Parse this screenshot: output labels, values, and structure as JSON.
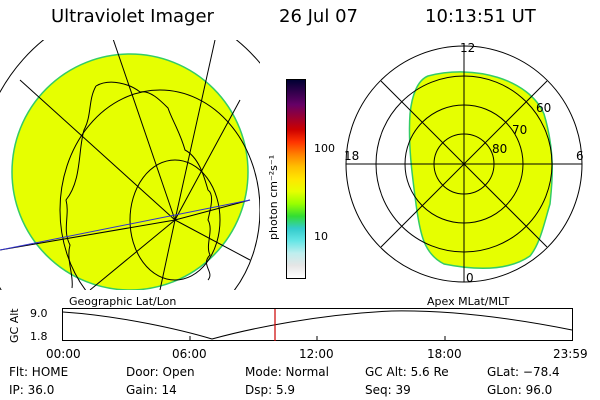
{
  "header": {
    "title": "Ultraviolet Imager",
    "date": "26 Jul 07",
    "time": "10:13:51 UT"
  },
  "colors": {
    "fill": "#e6ff00",
    "edge": "#33cc66"
  },
  "colorbar": {
    "unit": "photon cm⁻²s⁻¹",
    "ticks": [
      "100",
      "10"
    ],
    "stops": [
      "#000033",
      "#33004d",
      "#660066",
      "#990033",
      "#cc0000",
      "#ff3300",
      "#ff8000",
      "#ffbf00",
      "#ffe600",
      "#e6ff00",
      "#99ff00",
      "#33dd33",
      "#33cccc",
      "#66e6e6",
      "#bfeeee",
      "#e6e6e6",
      "#ffffff"
    ]
  },
  "left_panel": {
    "caption": "Geographic Lat/Lon"
  },
  "right_panel": {
    "caption": "Apex MLat/MLT",
    "mlt_labels": {
      "top": "12",
      "left": "18",
      "right": "6",
      "bottom": "0"
    },
    "lat_labels": [
      "60",
      "70",
      "80"
    ]
  },
  "altitude_bar": {
    "label": "GC Alt",
    "ticks": [
      "9.0",
      "1.8"
    ],
    "times": [
      "00:00",
      "06:00",
      "12:00",
      "18:00",
      "23:59"
    ]
  },
  "status": {
    "flt": "Flt: HOME",
    "ip": "IP: 36.0",
    "door": "Door: Open",
    "gain": "Gain: 14",
    "mode": "Mode:  Normal",
    "dsp": "Dsp:     5.9",
    "gcalt": "GC Alt: 5.6 Re",
    "seq": "Seq: 39",
    "glat": "GLat:  −78.4",
    "glon": "GLon:  96.0"
  }
}
